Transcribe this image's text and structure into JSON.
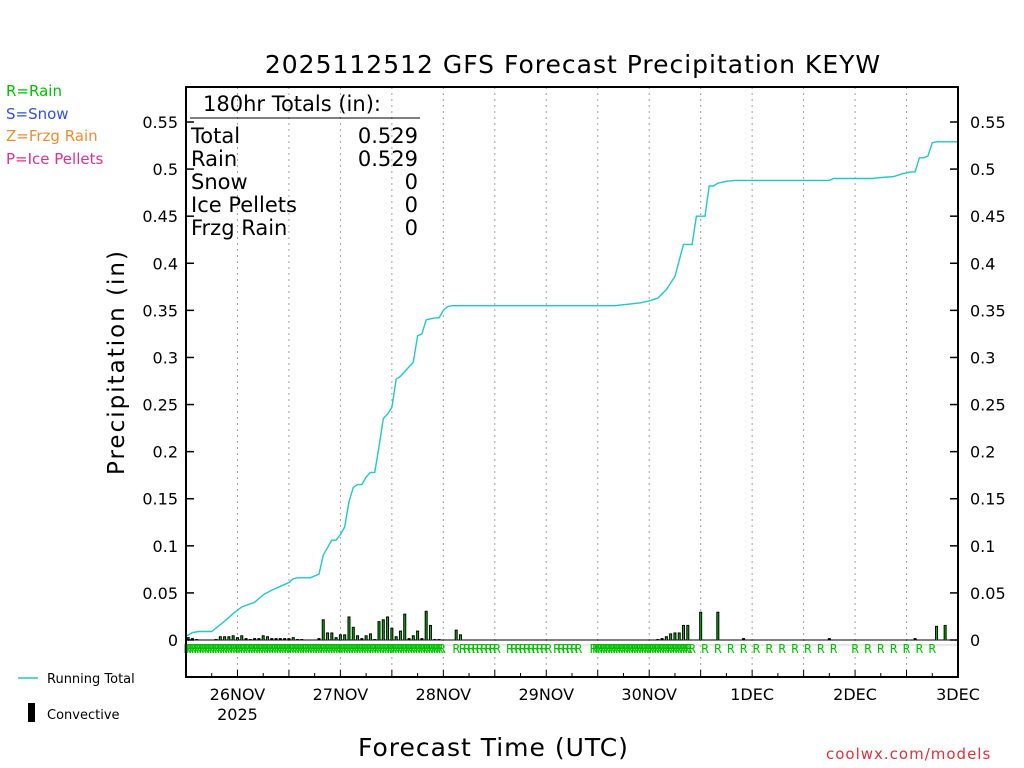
{
  "chart_data": {
    "type": "bar+line",
    "title": "2025112512 GFS Forecast Precipitation KEYW",
    "ylabel": "Precipitation (in)",
    "xlabel": "Forecast Time (UTC)",
    "ylim": [
      -0.02,
      0.585
    ],
    "yticks": [
      0,
      0.05,
      0.1,
      0.15,
      0.2,
      0.25,
      0.3,
      0.35,
      0.4,
      0.45,
      0.5,
      0.55
    ],
    "ytick_labels": [
      "0",
      "0.05",
      "0.1",
      "0.15",
      "0.2",
      "0.25",
      "0.3",
      "0.35",
      "0.4",
      "0.45",
      "0.5",
      "0.55"
    ],
    "xlim_hours": [
      0,
      180
    ],
    "xticks": [
      {
        "label": "26NOV",
        "sublabel": "2025",
        "hour": 12
      },
      {
        "label": "27NOV",
        "sublabel": "",
        "hour": 36
      },
      {
        "label": "28NOV",
        "sublabel": "",
        "hour": 60
      },
      {
        "label": "29NOV",
        "sublabel": "",
        "hour": 84
      },
      {
        "label": "30NOV",
        "sublabel": "",
        "hour": 108
      },
      {
        "label": "1DEC",
        "sublabel": "",
        "hour": 132
      },
      {
        "label": "2DEC",
        "sublabel": "",
        "hour": 156
      },
      {
        "label": "3DEC",
        "sublabel": "",
        "hour": 180
      }
    ],
    "grid": "vertical dotted",
    "running_total": {
      "name": "Running Total",
      "color": "#20c8c8",
      "points": [
        [
          0,
          0.004
        ],
        [
          1.5,
          0.008
        ],
        [
          3,
          0.009
        ],
        [
          6,
          0.009
        ],
        [
          9,
          0.02
        ],
        [
          11,
          0.028
        ],
        [
          13,
          0.035
        ],
        [
          16,
          0.04
        ],
        [
          18,
          0.048
        ],
        [
          20,
          0.053
        ],
        [
          22,
          0.057
        ],
        [
          24,
          0.061
        ],
        [
          25,
          0.065
        ],
        [
          26,
          0.066
        ],
        [
          29,
          0.066
        ],
        [
          31,
          0.07
        ],
        [
          32,
          0.09
        ],
        [
          33,
          0.098
        ],
        [
          34,
          0.106
        ],
        [
          35,
          0.106
        ],
        [
          36,
          0.112
        ],
        [
          37,
          0.12
        ],
        [
          38,
          0.147
        ],
        [
          39,
          0.162
        ],
        [
          40,
          0.165
        ],
        [
          41,
          0.165
        ],
        [
          42,
          0.173
        ],
        [
          43,
          0.178
        ],
        [
          44,
          0.178
        ],
        [
          45,
          0.205
        ],
        [
          46,
          0.235
        ],
        [
          47,
          0.24
        ],
        [
          48,
          0.247
        ],
        [
          49,
          0.277
        ],
        [
          50,
          0.28
        ],
        [
          51,
          0.285
        ],
        [
          52,
          0.29
        ],
        [
          53,
          0.295
        ],
        [
          54,
          0.323
        ],
        [
          55,
          0.325
        ],
        [
          56,
          0.34
        ],
        [
          57,
          0.341
        ],
        [
          58,
          0.342
        ],
        [
          59,
          0.342
        ],
        [
          60,
          0.35
        ],
        [
          61,
          0.354
        ],
        [
          62,
          0.355
        ],
        [
          100,
          0.355
        ],
        [
          102,
          0.356
        ],
        [
          104,
          0.357
        ],
        [
          106,
          0.358
        ],
        [
          108,
          0.36
        ],
        [
          110,
          0.363
        ],
        [
          112,
          0.372
        ],
        [
          114,
          0.386
        ],
        [
          116,
          0.42
        ],
        [
          117,
          0.42
        ],
        [
          118,
          0.42
        ],
        [
          119,
          0.45
        ],
        [
          120,
          0.45
        ],
        [
          121,
          0.45
        ],
        [
          122,
          0.482
        ],
        [
          123,
          0.482
        ],
        [
          124,
          0.485
        ],
        [
          125,
          0.486
        ],
        [
          126,
          0.487
        ],
        [
          128,
          0.488
        ],
        [
          150,
          0.488
        ],
        [
          151,
          0.49
        ],
        [
          160,
          0.49
        ],
        [
          162,
          0.491
        ],
        [
          165,
          0.492
        ],
        [
          167,
          0.495
        ],
        [
          169,
          0.497
        ],
        [
          170,
          0.497
        ],
        [
          171,
          0.512
        ],
        [
          172,
          0.512
        ],
        [
          173,
          0.514
        ],
        [
          174,
          0.528
        ],
        [
          175,
          0.529
        ],
        [
          180,
          0.529
        ]
      ]
    },
    "bars": {
      "name": "Convective",
      "bar_color": "#000000",
      "convective_color": "#00c000",
      "values": [
        [
          0.5,
          0.003
        ],
        [
          1.5,
          0.002
        ],
        [
          2.5,
          0.001
        ],
        [
          7,
          0.001
        ],
        [
          8,
          0.004
        ],
        [
          9,
          0.004
        ],
        [
          10,
          0.004
        ],
        [
          11,
          0.005
        ],
        [
          12,
          0.003
        ],
        [
          13,
          0.005
        ],
        [
          14,
          0.002
        ],
        [
          15,
          0.001
        ],
        [
          16,
          0.002
        ],
        [
          17,
          0.002
        ],
        [
          18,
          0.005
        ],
        [
          19,
          0.004
        ],
        [
          20,
          0.002
        ],
        [
          21,
          0.002
        ],
        [
          22,
          0.002
        ],
        [
          23,
          0.002
        ],
        [
          24,
          0.002
        ],
        [
          25,
          0.003
        ],
        [
          26,
          0.001
        ],
        [
          27,
          0.001
        ],
        [
          31,
          0.002
        ],
        [
          32,
          0.022
        ],
        [
          33,
          0.008
        ],
        [
          34,
          0.008
        ],
        [
          35,
          0.003
        ],
        [
          36,
          0.006
        ],
        [
          37,
          0.006
        ],
        [
          38,
          0.025
        ],
        [
          39,
          0.014
        ],
        [
          40,
          0.005
        ],
        [
          41,
          0.002
        ],
        [
          42,
          0.005
        ],
        [
          43,
          0.007
        ],
        [
          44,
          0.001
        ],
        [
          45,
          0.02
        ],
        [
          46,
          0.022
        ],
        [
          47,
          0.025
        ],
        [
          48,
          0.013
        ],
        [
          49,
          0.004
        ],
        [
          50,
          0.01
        ],
        [
          51,
          0.028
        ],
        [
          52,
          0.002
        ],
        [
          53,
          0.005
        ],
        [
          54,
          0.01
        ],
        [
          55,
          0.002
        ],
        [
          56,
          0.031
        ],
        [
          57,
          0.016
        ],
        [
          58,
          0.001
        ],
        [
          59,
          0.001
        ],
        [
          63,
          0.011
        ],
        [
          64,
          0.006
        ],
        [
          110,
          0.001
        ],
        [
          111,
          0.002
        ],
        [
          112,
          0.004
        ],
        [
          113,
          0.007
        ],
        [
          114,
          0.008
        ],
        [
          115,
          0.008
        ],
        [
          116,
          0.016
        ],
        [
          117,
          0.016
        ],
        [
          120,
          0.03
        ],
        [
          124,
          0.03
        ],
        [
          130,
          0.002
        ],
        [
          150,
          0.002
        ],
        [
          170,
          0.002
        ],
        [
          175,
          0.015
        ],
        [
          177,
          0.016
        ]
      ]
    },
    "rain_marker": "R",
    "rain_marker_hours": [
      0.3,
      0.9,
      1.5,
      2.1,
      2.7,
      3.3,
      3.9,
      4.5,
      5.1,
      5.7,
      6.3,
      6.9,
      7.5,
      8.1,
      8.7,
      9.3,
      9.9,
      10.5,
      11.1,
      11.7,
      12.3,
      12.9,
      13.5,
      14.1,
      14.7,
      15.3,
      15.9,
      16.5,
      17.1,
      17.7,
      18.3,
      18.9,
      19.5,
      20.1,
      20.7,
      21.3,
      21.9,
      22.5,
      23.1,
      23.7,
      24.3,
      24.9,
      25.5,
      26.1,
      26.7,
      27.3,
      27.9,
      28.5,
      29.1,
      29.7,
      30.3,
      30.9,
      31.5,
      32.1,
      32.7,
      33.3,
      33.9,
      34.5,
      35.1,
      35.7,
      36.3,
      36.9,
      37.5,
      38.1,
      38.7,
      39.3,
      39.9,
      40.5,
      41.1,
      41.7,
      42.3,
      42.9,
      43.5,
      44.1,
      44.7,
      45.3,
      45.9,
      46.5,
      47.1,
      47.7,
      48.3,
      48.9,
      49.5,
      50.1,
      50.7,
      51.3,
      51.9,
      52.5,
      53.1,
      53.7,
      54.3,
      54.9,
      55.5,
      56.1,
      56.7,
      57.3,
      57.9,
      58.5,
      59.1,
      59.7,
      63,
      64.5,
      65.5,
      66.5,
      67.5,
      68.5,
      69.5,
      70.5,
      71.5,
      72.5,
      75.5,
      76.5,
      77.5,
      78.5,
      79.5,
      80.5,
      81.5,
      82.5,
      83.5,
      84.5,
      86.5,
      87.5,
      88.5,
      89.5,
      90.5,
      91.5,
      95,
      95.6,
      96.2,
      96.8,
      97.4,
      98,
      98.6,
      99.2,
      99.8,
      100.4,
      101,
      101.6,
      102.2,
      102.8,
      103.4,
      104,
      104.6,
      105.2,
      105.8,
      106.4,
      107,
      107.6,
      108.2,
      108.8,
      109.4,
      110,
      110.6,
      111.2,
      111.8,
      112.4,
      113,
      113.6,
      114.2,
      114.8,
      115.4,
      116,
      116.6,
      117.2,
      118,
      121,
      124,
      127,
      130,
      133,
      136,
      139,
      142,
      145,
      148,
      151,
      156,
      159,
      162,
      165,
      168,
      171,
      174
    ],
    "totals_heading": "180hr Totals (in):",
    "totals": [
      {
        "label": "Total",
        "value": "0.529"
      },
      {
        "label": "Rain",
        "value": "0.529"
      },
      {
        "label": "Snow",
        "value": "0"
      },
      {
        "label": "Ice Pellets",
        "value": "0"
      },
      {
        "label": "Frzg Rain",
        "value": "0"
      }
    ],
    "legend": [
      {
        "label": "Running Total",
        "color": "#20c8c8"
      },
      {
        "label": "Convective",
        "color": "#000000"
      }
    ],
    "ptype_key": [
      {
        "label": "R=Rain",
        "color": "#00c000"
      },
      {
        "label": "S=Snow",
        "color": "#3050e0"
      },
      {
        "label": "Z=Frzg Rain",
        "color": "#f08c30"
      },
      {
        "label": "P=Ice Pellets",
        "color": "#e0308c"
      }
    ],
    "credit": "coolwx.com/models"
  }
}
